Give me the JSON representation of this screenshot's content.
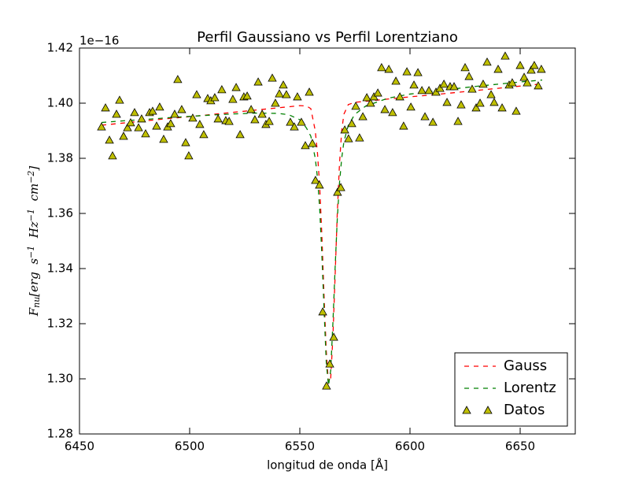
{
  "chart_data": {
    "type": "line",
    "title": "Perfil Gaussiano vs Perfil Lorentziano",
    "xlabel": "longitud de onda [Å]",
    "ylabel": [
      {
        "text": "F",
        "shift": "base"
      },
      {
        "text": "nu",
        "shift": "sub"
      },
      {
        "text": "[erg  s",
        "shift": "base"
      },
      {
        "text": "−1",
        "shift": "sup"
      },
      {
        "text": "  Hz",
        "shift": "base"
      },
      {
        "text": "−1",
        "shift": "sup"
      },
      {
        "text": "  cm",
        "shift": "base"
      },
      {
        "text": "−2",
        "shift": "sup"
      },
      {
        "text": "]",
        "shift": "base"
      }
    ],
    "y_offset_label": "1e−16",
    "xlim": [
      6450,
      6675
    ],
    "ylim": [
      1.28,
      1.42
    ],
    "xticks": [
      6450,
      6500,
      6550,
      6600,
      6650
    ],
    "yticks": [
      1.28,
      {
        "value": 1.3,
        "label": "1.30"
      },
      1.32,
      1.34,
      1.36,
      1.38,
      {
        "value": 1.4,
        "label": "1.40"
      },
      1.42
    ],
    "legend": "lower right",
    "series": [
      {
        "name": "Gauss",
        "type": "line",
        "color": "#ff0000",
        "dashed": true,
        "x": [
          6460,
          6470,
          6480,
          6490,
          6500,
          6510,
          6520,
          6530,
          6540,
          6550,
          6553,
          6555,
          6557,
          6558,
          6559,
          6560,
          6561,
          6562,
          6563,
          6564,
          6565,
          6566,
          6567,
          6568,
          6569,
          6570,
          6572,
          6575,
          6580,
          6590,
          6600,
          6610,
          6620,
          6630,
          6640,
          6650,
          6660
        ],
        "values": [
          1.392,
          1.3928,
          1.3936,
          1.3944,
          1.3951,
          1.3959,
          1.3967,
          1.3975,
          1.3983,
          1.3991,
          1.399,
          1.398,
          1.39,
          1.382,
          1.37,
          1.352,
          1.33,
          1.31,
          1.2985,
          1.3,
          1.315,
          1.337,
          1.36,
          1.378,
          1.39,
          1.396,
          1.3995,
          1.4003,
          1.4007,
          1.4015,
          1.4023,
          1.403,
          1.4038,
          1.4046,
          1.4054,
          1.4062,
          1.407
        ]
      },
      {
        "name": "Lorentz",
        "type": "line",
        "color": "#008000",
        "dashed": true,
        "x": [
          6460,
          6470,
          6480,
          6490,
          6500,
          6510,
          6520,
          6530,
          6540,
          6545,
          6550,
          6553,
          6555,
          6557,
          6558,
          6559,
          6560,
          6561,
          6562,
          6563,
          6564,
          6565,
          6566,
          6567,
          6568,
          6569,
          6570,
          6572,
          6575,
          6580,
          6590,
          6600,
          6610,
          6620,
          6630,
          6640,
          6650,
          6660
        ],
        "values": [
          1.393,
          1.3936,
          1.3941,
          1.3947,
          1.3952,
          1.3957,
          1.3961,
          1.3964,
          1.3963,
          1.3958,
          1.394,
          1.391,
          1.388,
          1.38,
          1.373,
          1.362,
          1.345,
          1.325,
          1.306,
          1.2975,
          1.303,
          1.32,
          1.34,
          1.358,
          1.371,
          1.38,
          1.386,
          1.392,
          1.396,
          1.399,
          1.4018,
          1.4033,
          1.4043,
          1.4052,
          1.4061,
          1.4069,
          1.4077,
          1.4084
        ]
      },
      {
        "name": "Datos",
        "type": "scatter",
        "color": "#bfbf00",
        "marker": "triangle",
        "x": [
          6460,
          6461.8,
          6463.6,
          6465,
          6466.8,
          6468.2,
          6470,
          6471.8,
          6473.2,
          6475,
          6476.8,
          6478.2,
          6480,
          6481.8,
          6483.2,
          6485,
          6486.4,
          6488.2,
          6490,
          6491.4,
          6493.2,
          6494.6,
          6496.4,
          6498.2,
          6499.6,
          6501.4,
          6503.2,
          6504.6,
          6506.4,
          6508.2,
          6509.6,
          6511.4,
          6512.9,
          6514.6,
          6516.4,
          6517.9,
          6519.6,
          6521.1,
          6522.9,
          6524.6,
          6526.1,
          6527.9,
          6529.6,
          6531.1,
          6532.9,
          6534.6,
          6536.1,
          6537.5,
          6538.9,
          6540.7,
          6542.5,
          6543.9,
          6545.7,
          6547.5,
          6548.9,
          6550.7,
          6552.5,
          6554.3,
          6555.7,
          6557.1,
          6558.9,
          6560.4,
          6562.1,
          6563.6,
          6565.4,
          6567.1,
          6568.6,
          6570.4,
          6572.1,
          6573.6,
          6575.4,
          6577.1,
          6578.6,
          6580.4,
          6582.1,
          6583.6,
          6585.4,
          6587.1,
          6588.6,
          6590.4,
          6592.1,
          6593.6,
          6595.4,
          6597.1,
          6598.6,
          6600.4,
          6601.8,
          6603.6,
          6605.4,
          6606.8,
          6608.6,
          6610.4,
          6611.8,
          6613.6,
          6615.4,
          6616.8,
          6618.2,
          6620,
          6621.8,
          6623.2,
          6625,
          6626.8,
          6628.2,
          6630,
          6631.8,
          6633.2,
          6635,
          6636.8,
          6638.2,
          6640,
          6641.8,
          6643.2,
          6645,
          6646.4,
          6648.2,
          6650,
          6651.8,
          6653.2,
          6655,
          6656.4,
          6658.2,
          6659.6
        ],
        "values": [
          1.3914,
          1.3983,
          1.3866,
          1.3809,
          1.396,
          1.4011,
          1.388,
          1.3911,
          1.3929,
          1.3966,
          1.3911,
          1.3943,
          1.3889,
          1.3966,
          1.3971,
          1.3917,
          1.3986,
          1.3869,
          1.3914,
          1.3926,
          1.396,
          1.4086,
          1.3977,
          1.3857,
          1.3809,
          1.3946,
          1.4031,
          1.3923,
          1.3886,
          1.4017,
          1.4009,
          1.402,
          1.3943,
          1.4049,
          1.3937,
          1.3934,
          1.4014,
          1.4057,
          1.3886,
          1.4023,
          1.4026,
          1.3977,
          1.394,
          1.4077,
          1.396,
          1.3923,
          1.3934,
          1.4091,
          1.4,
          1.4034,
          1.4066,
          1.4031,
          1.3931,
          1.3914,
          1.4023,
          1.3931,
          1.3846,
          1.404,
          1.3854,
          1.372,
          1.3703,
          1.3243,
          1.2974,
          1.3054,
          1.3151,
          1.3677,
          1.3694,
          1.3903,
          1.3871,
          1.3926,
          1.3989,
          1.3874,
          1.3951,
          1.402,
          1.4,
          1.4023,
          1.4037,
          1.4129,
          1.3977,
          1.4123,
          1.3966,
          1.408,
          1.4023,
          1.3917,
          1.4114,
          1.3986,
          1.4066,
          1.4111,
          1.4046,
          1.3951,
          1.4046,
          1.3931,
          1.404,
          1.4054,
          1.4069,
          1.4003,
          1.406,
          1.406,
          1.3934,
          1.3994,
          1.4129,
          1.4097,
          1.4051,
          1.3983,
          1.4,
          1.4069,
          1.4149,
          1.4031,
          1.4003,
          1.4123,
          1.3983,
          1.4171,
          1.4066,
          1.4074,
          1.3971,
          1.4137,
          1.4094,
          1.4074,
          1.412,
          1.4137,
          1.4063,
          1.4123
        ]
      }
    ]
  }
}
